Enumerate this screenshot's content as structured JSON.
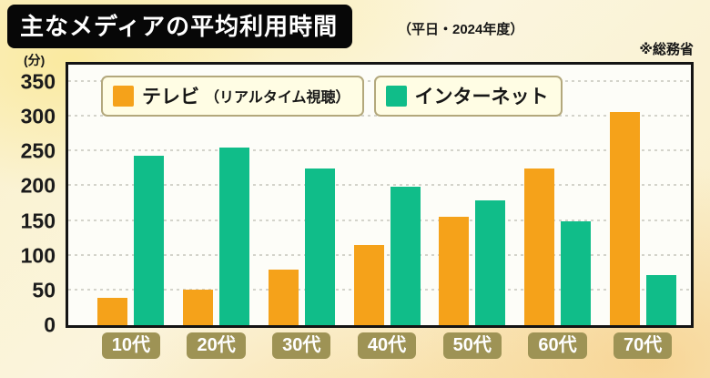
{
  "header": {
    "title": "主なメディアの平均利用時間",
    "subtitle": "（平日・2024年度）",
    "source": "※総務省"
  },
  "chart_data": {
    "type": "bar",
    "title": "主なメディアの平均利用時間",
    "subtitle": "（平日・2024年度）",
    "source": "※総務省",
    "unit_label": "(分)",
    "categories": [
      "10代",
      "20代",
      "30代",
      "40代",
      "50代",
      "60代",
      "70代"
    ],
    "series": [
      {
        "key": "tv",
        "name": "テレビ（リアルタイム視聴）",
        "legend_main": "テレビ",
        "legend_sub": "（リアルタイム視聴）",
        "color": "#F5A21A",
        "values": [
          39,
          51,
          80,
          116,
          156,
          225,
          307
        ]
      },
      {
        "key": "internet",
        "name": "インターネット",
        "legend_main": "インターネット",
        "legend_sub": "",
        "color": "#10BD89",
        "values": [
          244,
          256,
          225,
          199,
          179,
          149,
          72
        ]
      }
    ],
    "yticks": [
      0,
      50,
      100,
      150,
      200,
      250,
      300,
      350
    ],
    "ylim": [
      0,
      375
    ],
    "grid": "dotted horizontal",
    "legend_position": "top-inside",
    "x_label_box_color": "#9E9355"
  }
}
